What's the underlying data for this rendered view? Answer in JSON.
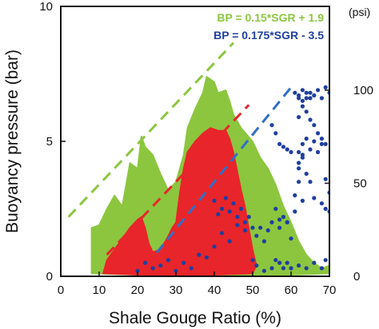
{
  "chart_data": {
    "type": "scatter",
    "title": "",
    "xlabel": "Shale Gouge Ratio (%)",
    "ylabel": "Buoyancy pressure (bar)",
    "y2label": "(psi)",
    "xlim": [
      0,
      70
    ],
    "ylim": [
      0,
      10
    ],
    "y2lim": [
      0,
      145.04
    ],
    "xticks": [
      "0",
      "10",
      "20",
      "30",
      "40",
      "50",
      "60",
      "70"
    ],
    "yticks": [
      "0",
      "5",
      "10"
    ],
    "y2ticks": [
      "0",
      "50",
      "100"
    ],
    "grid": false,
    "legend_position": "top-right",
    "colors": {
      "green": "#8cc63f",
      "red": "#e8252a",
      "blue": "#1f3f9f",
      "green_line": "#8cc63f",
      "red_line": "#e8252a",
      "blue_line": "#2f6fc8"
    },
    "series": [
      {
        "name": "",
        "color": "#8cc63f",
        "kind": "region",
        "points": [
          [
            8,
            0.1
          ],
          [
            8,
            1.8
          ],
          [
            10,
            1.9
          ],
          [
            12,
            2.5
          ],
          [
            14,
            3.0
          ],
          [
            16,
            2.6
          ],
          [
            18,
            4.2
          ],
          [
            20,
            4.0
          ],
          [
            21,
            5.2
          ],
          [
            22,
            4.8
          ],
          [
            24,
            4.5
          ],
          [
            26,
            3.8
          ],
          [
            28,
            3.2
          ],
          [
            30,
            3.5
          ],
          [
            32,
            4.5
          ],
          [
            33,
            5.5
          ],
          [
            35,
            6.2
          ],
          [
            37,
            6.8
          ],
          [
            38,
            7.4
          ],
          [
            40,
            7.2
          ],
          [
            41,
            6.8
          ],
          [
            43,
            6.9
          ],
          [
            44,
            6.5
          ],
          [
            45,
            6.0
          ],
          [
            47,
            5.5
          ],
          [
            50,
            5.0
          ],
          [
            52,
            4.4
          ],
          [
            54,
            4.0
          ],
          [
            56,
            3.4
          ],
          [
            58,
            2.6
          ],
          [
            60,
            2.0
          ],
          [
            62,
            1.3
          ],
          [
            64,
            0.8
          ],
          [
            66,
            0.5
          ],
          [
            68,
            0.3
          ],
          [
            70,
            0.4
          ],
          [
            70,
            0.1
          ],
          [
            60,
            0.05
          ],
          [
            40,
            0.02
          ],
          [
            20,
            0.05
          ],
          [
            8,
            0.1
          ]
        ]
      },
      {
        "name": "",
        "color": "#e8252a",
        "kind": "region",
        "points": [
          [
            11,
            0.1
          ],
          [
            12,
            0.6
          ],
          [
            14,
            1.0
          ],
          [
            16,
            1.4
          ],
          [
            18,
            1.8
          ],
          [
            20,
            2.1
          ],
          [
            21,
            2.2
          ],
          [
            22,
            1.8
          ],
          [
            23,
            1.2
          ],
          [
            24,
            0.9
          ],
          [
            26,
            1.0
          ],
          [
            28,
            1.5
          ],
          [
            29,
            1.8
          ],
          [
            30,
            2.0
          ],
          [
            31,
            3.1
          ],
          [
            32,
            4.0
          ],
          [
            33,
            4.6
          ],
          [
            35,
            5.0
          ],
          [
            37,
            5.3
          ],
          [
            39,
            5.5
          ],
          [
            41,
            5.4
          ],
          [
            43,
            5.4
          ],
          [
            44,
            5.1
          ],
          [
            45,
            4.6
          ],
          [
            46,
            3.9
          ],
          [
            47,
            3.2
          ],
          [
            48,
            2.6
          ],
          [
            49,
            1.8
          ],
          [
            50,
            1.0
          ],
          [
            51,
            0.4
          ],
          [
            50,
            0.1
          ],
          [
            40,
            0.05
          ],
          [
            30,
            0.05
          ],
          [
            20,
            0.05
          ],
          [
            11,
            0.1
          ]
        ]
      },
      {
        "name": "",
        "color": "#1f3f9f",
        "kind": "points",
        "points": [
          [
            20,
            0.2
          ],
          [
            22,
            0.5
          ],
          [
            24,
            0.3
          ],
          [
            26,
            0.4
          ],
          [
            28,
            0.6
          ],
          [
            30,
            0.2
          ],
          [
            32,
            0.5
          ],
          [
            34,
            0.3
          ],
          [
            36,
            0.8
          ],
          [
            38,
            0.7
          ],
          [
            40,
            1.1
          ],
          [
            42,
            1.6
          ],
          [
            44,
            1.3
          ],
          [
            46,
            1.9
          ],
          [
            48,
            1.7
          ],
          [
            50,
            0.6
          ],
          [
            51,
            0.4
          ],
          [
            53,
            0.2
          ],
          [
            55,
            0.3
          ],
          [
            56,
            0.6
          ],
          [
            57,
            0.5
          ],
          [
            58,
            0.3
          ],
          [
            59,
            0.5
          ],
          [
            60,
            0.3
          ],
          [
            62,
            0.4
          ],
          [
            64,
            0.3
          ],
          [
            66,
            0.5
          ],
          [
            68,
            0.3
          ],
          [
            69,
            0.6
          ],
          [
            40,
            2.8
          ],
          [
            41,
            2.3
          ],
          [
            42,
            2.5
          ],
          [
            43,
            2.9
          ],
          [
            44,
            2.4
          ],
          [
            45,
            2.7
          ],
          [
            46,
            2.2
          ],
          [
            47,
            2.5
          ],
          [
            48,
            2.0
          ],
          [
            49,
            2.2
          ],
          [
            50,
            1.8
          ],
          [
            51,
            1.5
          ],
          [
            52,
            1.8
          ],
          [
            53,
            1.3
          ],
          [
            54,
            1.7
          ],
          [
            55,
            2.0
          ],
          [
            56,
            2.5
          ],
          [
            57,
            1.8
          ],
          [
            58,
            2.2
          ],
          [
            59,
            2.0
          ],
          [
            60,
            1.4
          ],
          [
            61,
            2.4
          ],
          [
            62,
            3.5
          ],
          [
            63,
            2.8
          ],
          [
            64,
            3.8
          ],
          [
            65,
            3.5
          ],
          [
            66,
            5.0
          ],
          [
            67,
            4.6
          ],
          [
            68,
            4.9
          ],
          [
            69,
            3.6
          ],
          [
            70,
            3.1
          ],
          [
            61,
            6.8
          ],
          [
            62,
            6.6
          ],
          [
            63,
            6.9
          ],
          [
            64,
            6.8
          ],
          [
            65,
            6.6
          ],
          [
            66,
            6.7
          ],
          [
            67,
            6.9
          ],
          [
            68,
            6.6
          ],
          [
            69,
            7.0
          ],
          [
            70,
            6.8
          ],
          [
            62,
            6.7
          ],
          [
            63,
            6.5
          ],
          [
            64,
            6.6
          ],
          [
            65,
            6.8
          ],
          [
            62,
            5.9
          ],
          [
            63,
            6.3
          ],
          [
            64,
            6.1
          ],
          [
            65,
            5.8
          ],
          [
            66,
            5.6
          ],
          [
            67,
            5.3
          ],
          [
            68,
            5.1
          ],
          [
            69,
            4.9
          ],
          [
            62,
            4.6
          ],
          [
            63,
            4.9
          ],
          [
            64,
            5.1
          ],
          [
            62,
            4.2
          ],
          [
            63,
            4.5
          ],
          [
            55,
            5.6
          ],
          [
            56,
            5.3
          ],
          [
            57,
            4.9
          ],
          [
            58,
            4.8
          ],
          [
            59,
            4.7
          ],
          [
            60,
            4.6
          ],
          [
            57,
            2.1
          ],
          [
            59,
            2.0
          ],
          [
            61,
            3.0
          ],
          [
            62,
            4.0
          ],
          [
            63,
            4.4
          ],
          [
            65,
            4.7
          ],
          [
            66,
            2.9
          ],
          [
            68,
            2.7
          ],
          [
            69,
            2.5
          ],
          [
            70,
            2.4
          ]
        ]
      }
    ],
    "lines": [
      {
        "label": "BP = 0.15*SGR + 1.9",
        "slope": 0.15,
        "intercept": 1.9,
        "x": [
          2,
          45
        ],
        "color": "#8cc63f"
      },
      {
        "label": "",
        "slope": 0.15,
        "intercept": -1.0,
        "x": [
          12,
          49
        ],
        "color": "#e8252a"
      },
      {
        "label": "BP = 0.175*SGR - 3.5",
        "slope": 0.175,
        "intercept": -3.5,
        "x": [
          25,
          60
        ],
        "color": "#2f6fc8"
      }
    ],
    "legend": [
      {
        "label": "BP = 0.15*SGR + 1.9",
        "color": "#8cc63f"
      },
      {
        "label": "BP = 0.175*SGR - 3.5",
        "color": "#1f3f9f"
      }
    ]
  }
}
